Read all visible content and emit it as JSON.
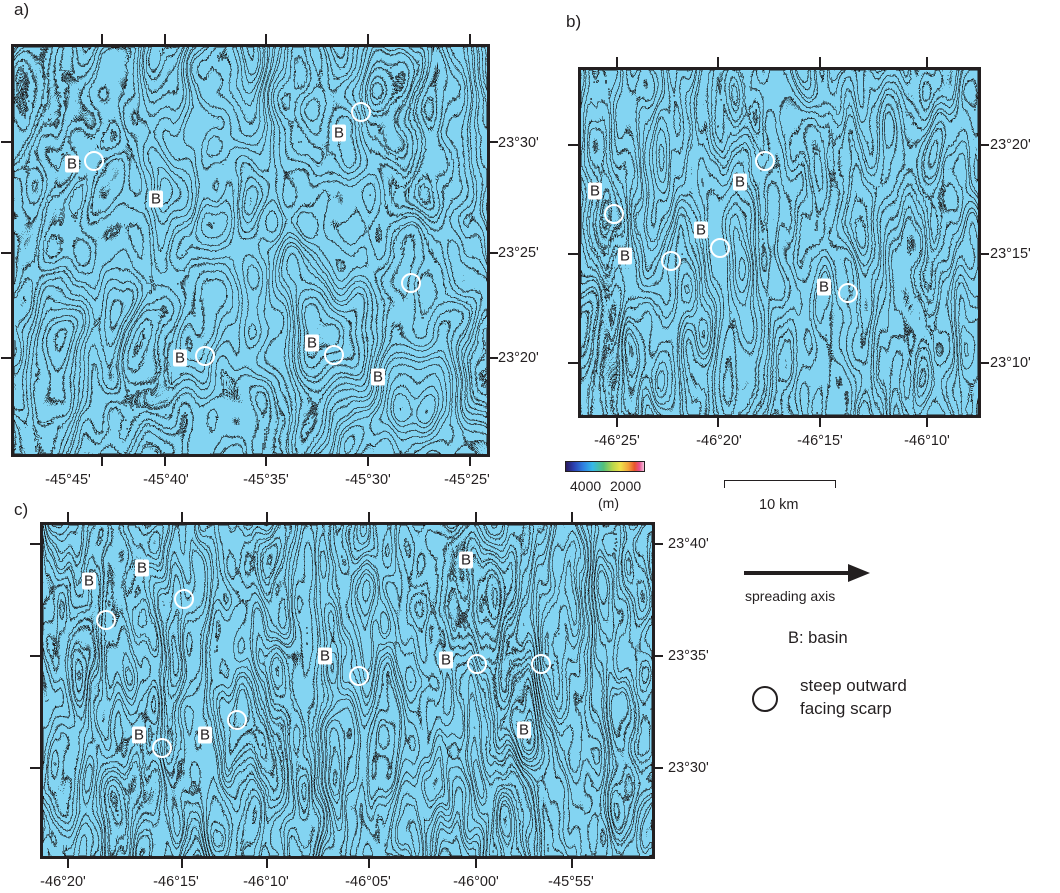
{
  "panels": {
    "a": {
      "letter": "a)",
      "x_ticks": [
        "-45°45'",
        "-45°40'",
        "-45°35'",
        "-45°30'",
        "-45°25'"
      ],
      "y_ticks": [
        "23°30'",
        "23°25'",
        "23°20'"
      ]
    },
    "b": {
      "letter": "b)",
      "x_ticks": [
        "-46°25'",
        "-46°20'",
        "-46°15'",
        "-46°10'"
      ],
      "y_ticks": [
        "23°20'",
        "23°15'",
        "23°10'"
      ]
    },
    "c": {
      "letter": "c)",
      "x_ticks": [
        "-46°20'",
        "-46°15'",
        "-46°10'",
        "-46°05'",
        "-46°00'",
        "-45°55'"
      ],
      "y_ticks": [
        "23°40'",
        "23°35'",
        "23°30'"
      ]
    }
  },
  "basin_label": "B",
  "depth_scale": {
    "deep": "4000",
    "shallow": "2000",
    "unit": "(m)"
  },
  "distance_scale": {
    "label": "10 km"
  },
  "legend": {
    "spreading_axis": "spreading axis",
    "basin": "B: basin",
    "scarp_line1": "steep outward",
    "scarp_line2": "facing scarp"
  },
  "colors": {
    "deep": "#3aa8e2",
    "mid": "#8ec58a",
    "shallow": "#e2d65a",
    "peak": "#e26c2a",
    "contour": "#1a1a1a"
  }
}
